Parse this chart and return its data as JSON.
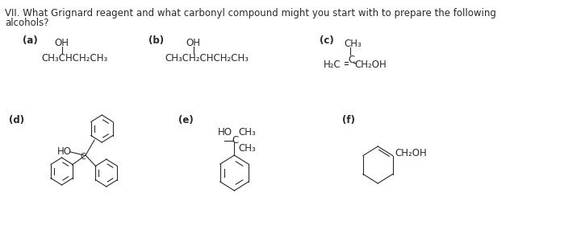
{
  "title_line1": "VII. What Grignard reagent and what carbonyl compound might you start with to prepare the following",
  "title_line2": "alcohols?",
  "background_color": "#ffffff",
  "text_color": "#2a2a2a",
  "fig_width": 7.2,
  "fig_height": 2.81,
  "dpi": 100,
  "label_a": "(a)",
  "label_b": "(b)",
  "label_c": "(c)",
  "label_d": "(d)",
  "label_e": "(e)",
  "label_f": "(f)",
  "struct_a_oh": "OH",
  "struct_a_chain": "CH₃CHCH₂CH₃",
  "struct_b_oh": "OH",
  "struct_b_chain": "CH₃CH₂CHCH₂CH₃",
  "struct_c_ch3": "CH₃",
  "struct_c_c": "C",
  "struct_c_h2c": "H₂C",
  "struct_c_ch2oh": "CH₂OH",
  "struct_e_ho": "HO",
  "struct_e_ch3top": "CH₃",
  "struct_e_c": "C",
  "struct_e_ch3bot": "CH₃",
  "struct_f_ch2oh": "CH₂OH"
}
